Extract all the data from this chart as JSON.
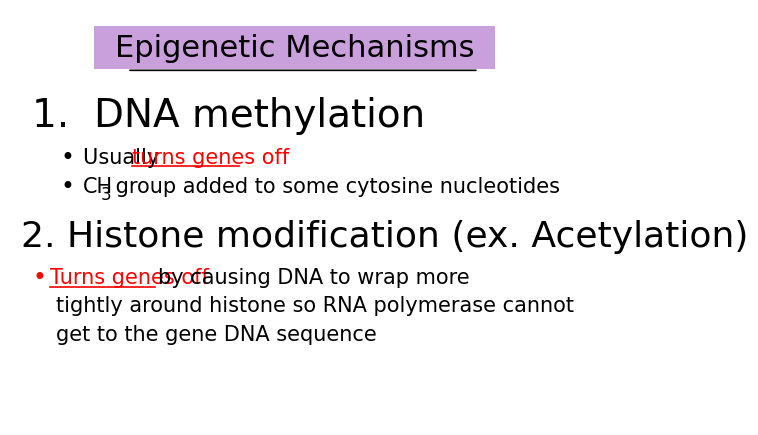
{
  "bg_color": "#ffffff",
  "title_text": "Epigenetic Mechanisms",
  "title_bg": "#c9a0dc",
  "title_color": "#000000",
  "title_fontsize": 22,
  "section1_number": "1.",
  "section1_title": "  DNA methylation",
  "section1_fontsize": 28,
  "bullet1a_prefix": "Usually ",
  "bullet1a_red": "turns genes off",
  "bullet1b_ch": "CH",
  "bullet1b_sub": "3",
  "bullet1b_rest": " group added to some cytosine nucleotides",
  "bullet_fontsize": 15,
  "section2_text": "2. Histone modification (ex. Acetylation)",
  "section2_fontsize": 26,
  "bullet2_red": "Turns genes off ",
  "bullet2_rest_line1": "by causing DNA to wrap more",
  "bullet2_rest_line2": "tightly around histone so RNA polymerase cannot",
  "bullet2_rest_line3": "get to the gene DNA sequence",
  "bullet2_fontsize": 15,
  "text_color": "#000000",
  "red_color": "#ff0000"
}
